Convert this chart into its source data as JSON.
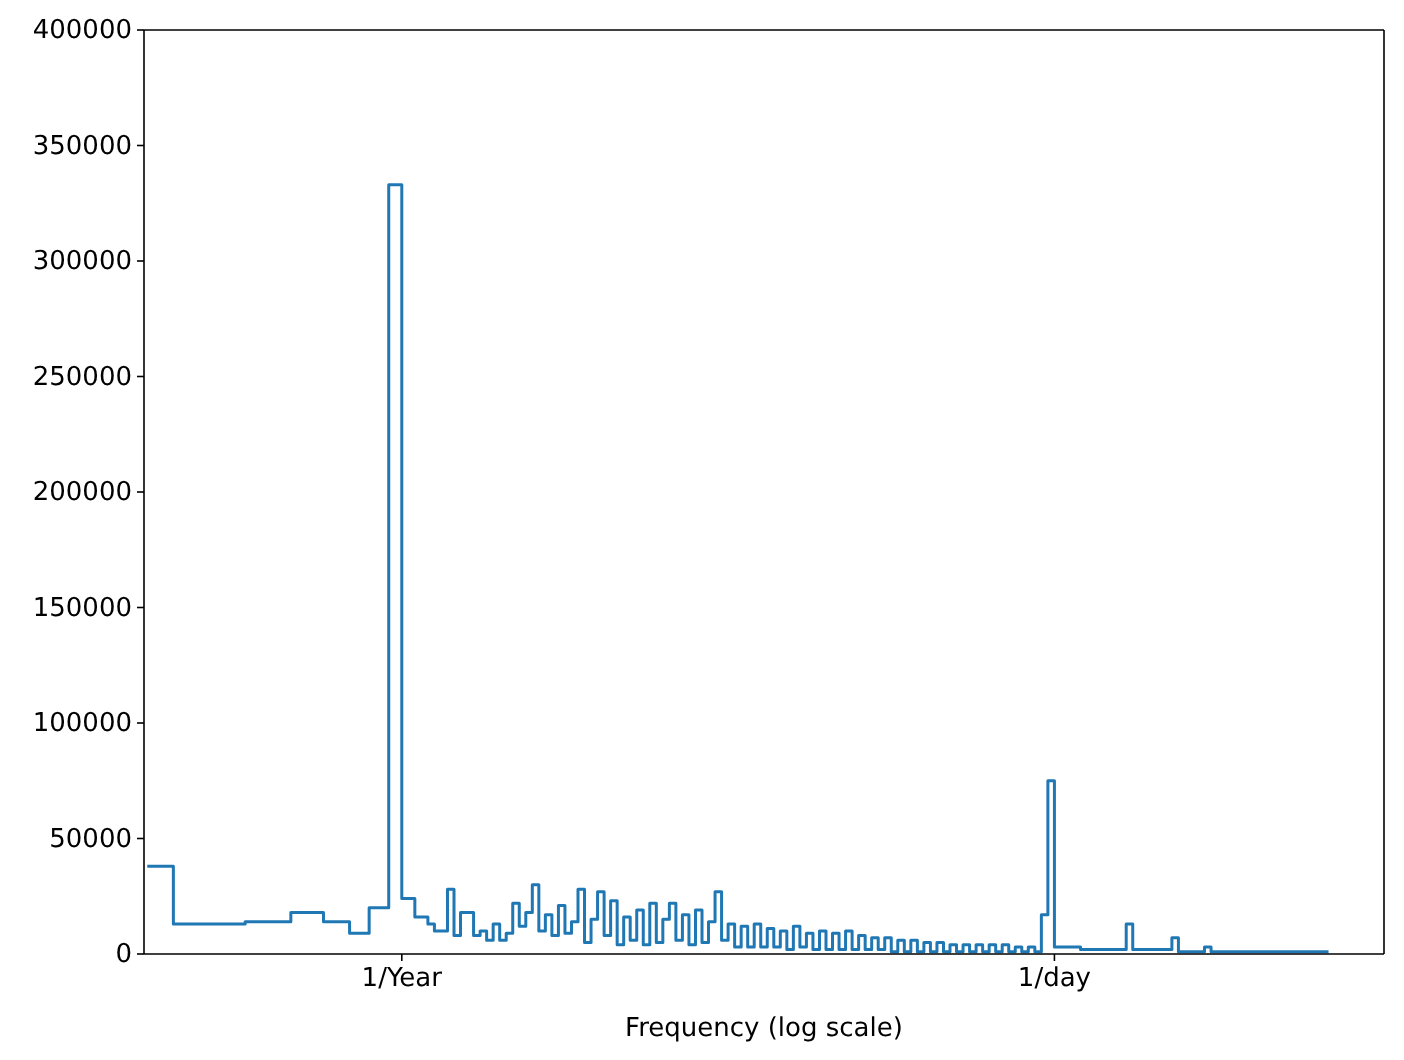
{
  "chart_data": {
    "type": "step",
    "xlabel": "Frequency (log scale)",
    "color": "#1f77b4",
    "marker": "none",
    "line_style": "solid",
    "categories": [
      null,
      null,
      null,
      null,
      null,
      null,
      null,
      null,
      null,
      null,
      null,
      null,
      null,
      null,
      null,
      null,
      null,
      null,
      null,
      null,
      null,
      null,
      null,
      null,
      null,
      null,
      null,
      null,
      null,
      null,
      null,
      null,
      null,
      null,
      null,
      null,
      null,
      null,
      null,
      "1/Year",
      null,
      null,
      null,
      null,
      null,
      null,
      null,
      null,
      null,
      null,
      null,
      null,
      null,
      null,
      null,
      null,
      null,
      null,
      null,
      null,
      null,
      null,
      null,
      null,
      null,
      null,
      null,
      null,
      null,
      null,
      null,
      null,
      null,
      null,
      null,
      null,
      null,
      null,
      null,
      null,
      null,
      null,
      null,
      null,
      null,
      null,
      null,
      null,
      null,
      null,
      null,
      null,
      null,
      null,
      null,
      null,
      null,
      null,
      null,
      null,
      null,
      null,
      null,
      null,
      null,
      null,
      null,
      null,
      null,
      null,
      null,
      null,
      null,
      null,
      null,
      null,
      null,
      null,
      null,
      null,
      null,
      null,
      null,
      null,
      null,
      null,
      null,
      null,
      null,
      null,
      null,
      null,
      null,
      null,
      null,
      null,
      null,
      null,
      null,
      "1/day",
      null,
      null,
      null,
      null,
      null,
      null,
      null,
      null,
      null,
      null,
      null,
      null,
      null,
      null,
      null,
      null,
      null,
      null,
      null,
      null,
      null,
      null,
      null,
      null,
      null,
      null,
      null,
      null,
      null,
      null,
      null,
      null,
      null,
      null,
      null,
      null,
      null,
      null,
      null,
      null,
      null,
      null,
      null,
      null,
      null,
      null,
      null,
      null,
      null,
      null
    ],
    "values": [
      38000,
      38000,
      38000,
      38000,
      38000,
      13000,
      13000,
      13000,
      13000,
      13000,
      13000,
      13000,
      13000,
      13000,
      13000,
      13000,
      14000,
      14000,
      14000,
      14000,
      14000,
      14000,
      14000,
      18000,
      18000,
      18000,
      18000,
      18000,
      14000,
      14000,
      14000,
      14000,
      9000,
      9000,
      9000,
      20000,
      20000,
      20000,
      333000,
      333000,
      24000,
      24000,
      16000,
      16000,
      13000,
      10000,
      10000,
      28000,
      8000,
      18000,
      18000,
      8000,
      10000,
      6000,
      13000,
      6000,
      9000,
      22000,
      12000,
      18000,
      30000,
      10000,
      17000,
      8000,
      21000,
      9000,
      14000,
      28000,
      5000,
      15000,
      27000,
      8000,
      23000,
      4000,
      16000,
      6000,
      19000,
      4000,
      22000,
      5000,
      15000,
      22000,
      6000,
      17000,
      4000,
      19000,
      5000,
      14000,
      27000,
      6000,
      13000,
      3000,
      12000,
      3000,
      13000,
      3000,
      11000,
      3000,
      10000,
      2000,
      12000,
      3000,
      9000,
      2000,
      10000,
      2000,
      9000,
      2000,
      10000,
      2000,
      8000,
      2000,
      7000,
      2000,
      7000,
      1000,
      6000,
      1000,
      6000,
      1000,
      5000,
      1000,
      5000,
      1000,
      4000,
      1000,
      4000,
      1000,
      4000,
      1000,
      4000,
      1000,
      4000,
      1000,
      3000,
      1000,
      3000,
      1000,
      17000,
      75000,
      3000,
      3000,
      3000,
      3000,
      2000,
      2000,
      2000,
      2000,
      2000,
      2000,
      2000,
      13000,
      2000,
      2000,
      2000,
      2000,
      2000,
      2000,
      7000,
      1000,
      1000,
      1000,
      1000,
      3000,
      1000,
      1000,
      1000,
      1000,
      1000,
      1000,
      1000,
      1000,
      1000,
      1000,
      1000,
      1000,
      1000,
      1000,
      1000,
      1000,
      1000,
      1000,
      null,
      null,
      null,
      null,
      null,
      null,
      null,
      null
    ],
    "ylim": [
      0,
      400000
    ],
    "yticks": [
      0,
      50000,
      100000,
      150000,
      200000,
      250000,
      300000,
      350000,
      400000
    ]
  }
}
